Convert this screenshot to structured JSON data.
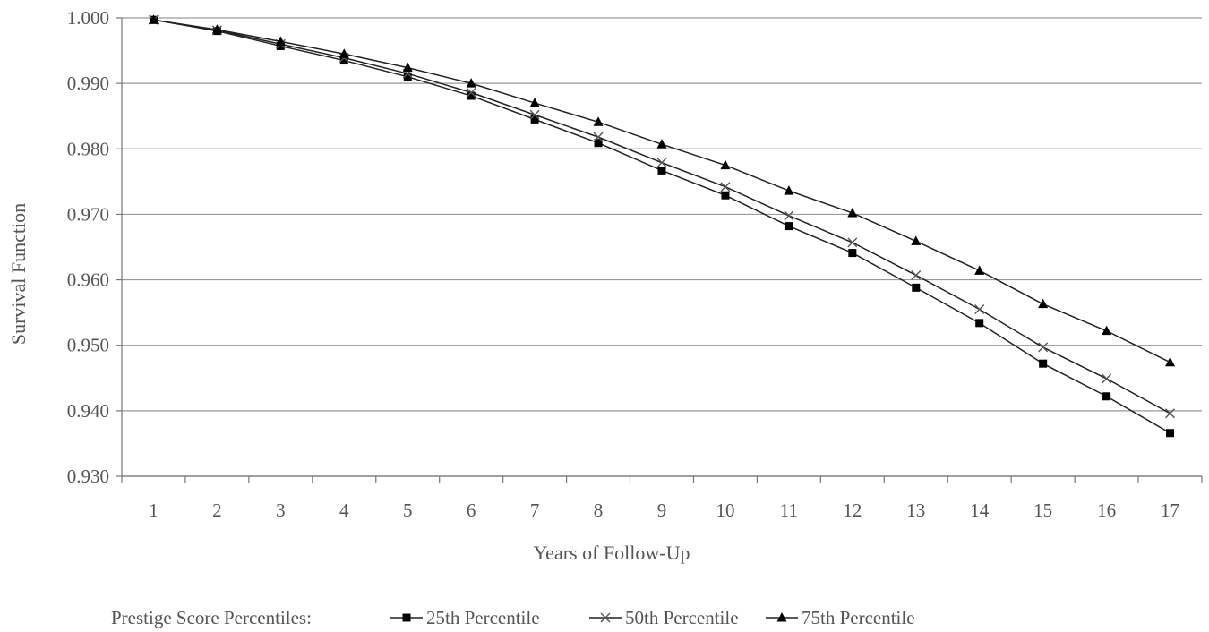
{
  "chart_data": {
    "type": "line",
    "xlabel": "Years of Follow-Up",
    "ylabel": "Survival Function",
    "categories": [
      "1",
      "2",
      "3",
      "4",
      "5",
      "6",
      "7",
      "8",
      "9",
      "10",
      "11",
      "12",
      "13",
      "14",
      "15",
      "16",
      "17"
    ],
    "ylim": [
      0.93,
      1.0
    ],
    "yticks": [
      "0.930",
      "0.940",
      "0.950",
      "0.960",
      "0.970",
      "0.980",
      "0.990",
      "1.000"
    ],
    "grid": "horizontal",
    "legend": {
      "title": "Prestige Score Percentiles:",
      "placement": "bottom"
    },
    "series": [
      {
        "name": "25th Percentile",
        "marker": "square",
        "color": "#000000",
        "values": [
          0.9997,
          0.998,
          0.9957,
          0.9935,
          0.991,
          0.9881,
          0.9845,
          0.9809,
          0.9767,
          0.9729,
          0.9682,
          0.9641,
          0.9588,
          0.9534,
          0.9472,
          0.9422,
          0.9366
        ]
      },
      {
        "name": "50th Percentile",
        "marker": "x",
        "color": "#000000",
        "values": [
          0.9997,
          0.9981,
          0.996,
          0.9939,
          0.9915,
          0.9886,
          0.9852,
          0.9818,
          0.9779,
          0.9742,
          0.9698,
          0.9657,
          0.9607,
          0.9555,
          0.9497,
          0.9449,
          0.9396
        ]
      },
      {
        "name": "75th Percentile",
        "marker": "triangle",
        "color": "#000000",
        "values": [
          0.9997,
          0.9982,
          0.9964,
          0.9945,
          0.9924,
          0.99,
          0.987,
          0.9841,
          0.9807,
          0.9775,
          0.9736,
          0.9702,
          0.9659,
          0.9614,
          0.9563,
          0.9522,
          0.9474
        ]
      }
    ]
  }
}
